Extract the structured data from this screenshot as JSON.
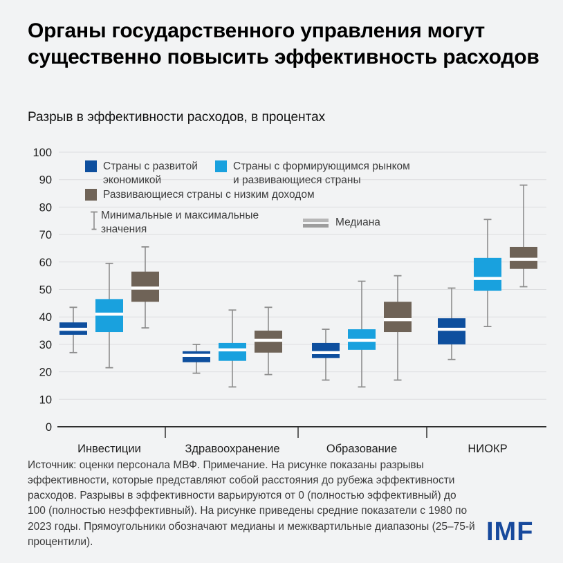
{
  "header": {
    "title": "Органы государственного управления могут существенно повысить эффективность расходов",
    "subtitle": "Разрыв в эффективности расходов, в процентах"
  },
  "chart_data": {
    "type": "boxplot",
    "title": "Разрыв в эффективности расходов, в процентах",
    "categories": [
      "Инвестиции",
      "Здравоохранение",
      "Образование",
      "НИОКР"
    ],
    "xlabel": "",
    "ylabel": "",
    "ylim": [
      0,
      100
    ],
    "ytick_step": 10,
    "grid": true,
    "legend_position": "top-inside",
    "series": [
      {
        "name": "Страны с развитой экономикой",
        "color": "#0e4f9e",
        "boxes": [
          {
            "category": "Инвестиции",
            "min": 27,
            "q1": 33.5,
            "median": 35.5,
            "q3": 38,
            "max": 43.5
          },
          {
            "category": "Здравоохранение",
            "min": 19.5,
            "q1": 23.5,
            "median": 26,
            "q3": 27.5,
            "max": 30
          },
          {
            "category": "Образование",
            "min": 17,
            "q1": 25,
            "median": 27,
            "q3": 30.5,
            "max": 35.5
          },
          {
            "category": "НИОКР",
            "min": 24.5,
            "q1": 30,
            "median": 35.5,
            "q3": 39.5,
            "max": 50.5
          }
        ]
      },
      {
        "name": "Страны с формирующимся рынком и развивающиеся страны",
        "color": "#19a1de",
        "boxes": [
          {
            "category": "Инвестиции",
            "min": 21.5,
            "q1": 34.5,
            "median": 41,
            "q3": 46.5,
            "max": 59.5
          },
          {
            "category": "Здравоохранение",
            "min": 14.5,
            "q1": 24,
            "median": 28,
            "q3": 30.5,
            "max": 42.5
          },
          {
            "category": "Образование",
            "min": 14.5,
            "q1": 28,
            "median": 31.5,
            "q3": 35.5,
            "max": 53
          },
          {
            "category": "НИОКР",
            "min": 36.5,
            "q1": 49.5,
            "median": 54,
            "q3": 61.5,
            "max": 75.5
          }
        ]
      },
      {
        "name": "Развивающиеся страны с низким доходом",
        "color": "#6f6357",
        "boxes": [
          {
            "category": "Инвестиции",
            "min": 36,
            "q1": 45.5,
            "median": 50.5,
            "q3": 56.5,
            "max": 65.5
          },
          {
            "category": "Здравоохранение",
            "min": 19,
            "q1": 27,
            "median": 31.5,
            "q3": 35,
            "max": 43.5
          },
          {
            "category": "Образование",
            "min": 17,
            "q1": 34.5,
            "median": 39,
            "q3": 45.5,
            "max": 55
          },
          {
            "category": "НИОКР",
            "min": 51,
            "q1": 57.5,
            "median": 61,
            "q3": 65.5,
            "max": 88
          }
        ]
      }
    ],
    "legend": {
      "minmax_label": "Минимальные и максимальные значения",
      "median_label": "Медиана"
    }
  },
  "footer": {
    "note": "Источник: оценки персонала МВФ.  Примечание. На рисунке показаны разрывы эффективности, которые представляют собой расстояния до рубежа эффективности расходов. Разрывы в эффективности варьируются от 0 (полностью эффективный) до 100 (полностью неэффективный). На рисунке приведены средние показатели с 1980 по 2023 годы. Прямоугольники обозначают медианы и межквартильные диапазоны (25–75-й процентили).",
    "logo_text": "IMF"
  },
  "colors": {
    "background": "#f2f3f4",
    "gridline": "#dcdddf",
    "whisker_gray": "#8d8d8d",
    "axis_dark": "#2f2f2f",
    "logo_blue": "#17499c",
    "median_line": "#ffffff"
  }
}
